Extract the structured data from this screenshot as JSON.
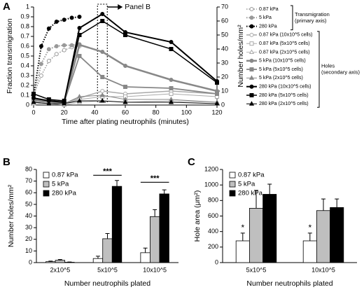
{
  "chart_data": [
    {
      "type": "line",
      "panel_label": "A",
      "xlabel": "Time after plating neutrophils (minutes)",
      "ylabel": "Fraction transmigration",
      "y2label": "Number holes/mm²",
      "xlim": [
        0,
        120
      ],
      "xticks": [
        0,
        20,
        40,
        60,
        80,
        100,
        120
      ],
      "ylim": [
        0,
        1
      ],
      "yticks": [
        0,
        0.1,
        0.2,
        0.3,
        0.4,
        0.5,
        0.6,
        0.7,
        0.8,
        0.9,
        1
      ],
      "y2lim": [
        0,
        70
      ],
      "y2ticks": [
        0,
        10,
        20,
        30,
        40,
        50,
        60,
        70
      ],
      "grid": false,
      "highlight": {
        "x": 45,
        "label": "Panel B"
      },
      "legend_groups": [
        {
          "axis": "y",
          "lines": [
            "Transmigration",
            "(primary axis)"
          ]
        },
        {
          "axis": "y2",
          "lines": [
            "Holes",
            "(secondary axis)"
          ]
        }
      ],
      "series": [
        {
          "name": "0.87 kPa",
          "axis": "y",
          "color": "#999999",
          "marker": "circle",
          "marker_fill": "#ffffff",
          "dash": "dotted",
          "line_width": 1.5,
          "x": [
            0,
            5,
            10,
            15,
            20,
            25,
            30
          ],
          "values": [
            0.1,
            0.3,
            0.45,
            0.52,
            0.56,
            0.59,
            0.6
          ]
        },
        {
          "name": "5 kPa",
          "axis": "y",
          "color": "#999999",
          "marker": "circle",
          "marker_fill": "#999999",
          "dash": "dotted",
          "line_width": 2,
          "x": [
            0,
            5,
            10,
            15,
            20,
            25,
            30
          ],
          "values": [
            0.08,
            0.42,
            0.57,
            0.6,
            0.61,
            0.61,
            0.62
          ]
        },
        {
          "name": "280 kPa",
          "axis": "y",
          "color": "#000000",
          "marker": "circle",
          "marker_fill": "#000000",
          "dash": "dotted",
          "line_width": 2,
          "x": [
            0,
            5,
            10,
            15,
            20,
            25,
            30
          ],
          "values": [
            0.1,
            0.6,
            0.78,
            0.85,
            0.87,
            0.89,
            0.9
          ]
        },
        {
          "name": "0.87 kPa (10x10^5 cells)",
          "axis": "y2",
          "color": "#aaaaaa",
          "marker": "circle",
          "marker_fill": "#ffffff",
          "dash": "solid",
          "line_width": 1.5,
          "x": [
            0,
            10,
            20,
            30,
            45,
            60,
            90,
            120
          ],
          "values": [
            3,
            2,
            1,
            5,
            10,
            8,
            10,
            8
          ]
        },
        {
          "name": "0.87 kPa (5x10^5 cells)",
          "axis": "y2",
          "color": "#aaaaaa",
          "marker": "square",
          "marker_fill": "#ffffff",
          "dash": "solid",
          "line_width": 1,
          "x": [
            0,
            10,
            20,
            30,
            45,
            60,
            90,
            120
          ],
          "values": [
            2,
            1,
            1,
            4,
            6,
            6,
            8,
            6
          ]
        },
        {
          "name": "0.87 kPa (2x10^5 cells)",
          "axis": "y2",
          "color": "#aaaaaa",
          "marker": "triangle",
          "marker_fill": "#ffffff",
          "dash": "solid",
          "line_width": 0.8,
          "x": [
            0,
            10,
            20,
            30,
            45,
            60,
            90,
            120
          ],
          "values": [
            1,
            1,
            0,
            2,
            3,
            2,
            3,
            2
          ]
        },
        {
          "name": "5 kPa (10x10^5 cells)",
          "axis": "y2",
          "color": "#888888",
          "marker": "circle",
          "marker_fill": "#888888",
          "dash": "solid",
          "line_width": 2.5,
          "x": [
            0,
            10,
            20,
            30,
            45,
            60,
            90,
            120
          ],
          "values": [
            4,
            3,
            2,
            43,
            38,
            28,
            18,
            10
          ]
        },
        {
          "name": "5 kPa (5x10^5 cells)",
          "axis": "y2",
          "color": "#888888",
          "marker": "square",
          "marker_fill": "#888888",
          "dash": "solid",
          "line_width": 1.8,
          "x": [
            0,
            10,
            20,
            30,
            45,
            60,
            90,
            120
          ],
          "values": [
            3,
            2,
            2,
            35,
            20,
            13,
            12,
            8
          ]
        },
        {
          "name": "5 kPa (2x10^5 cells)",
          "axis": "y2",
          "color": "#888888",
          "marker": "triangle",
          "marker_fill": "#888888",
          "dash": "solid",
          "line_width": 1,
          "x": [
            0,
            10,
            20,
            30,
            45,
            60,
            90,
            120
          ],
          "values": [
            2,
            1,
            1,
            6,
            7,
            4,
            4,
            2
          ]
        },
        {
          "name": "280 kPa (10x10^5 cells)",
          "axis": "y2",
          "color": "#000000",
          "marker": "circle",
          "marker_fill": "#000000",
          "dash": "solid",
          "line_width": 2,
          "x": [
            0,
            10,
            20,
            30,
            45,
            60,
            90,
            120
          ],
          "values": [
            5,
            3,
            2,
            55,
            65,
            52,
            45,
            17
          ]
        },
        {
          "name": "280 kPa (5x10^5 cells)",
          "axis": "y2",
          "color": "#000000",
          "marker": "square",
          "marker_fill": "#000000",
          "dash": "solid",
          "line_width": 1.5,
          "x": [
            0,
            10,
            20,
            30,
            45,
            60,
            90,
            120
          ],
          "values": [
            8,
            4,
            3,
            50,
            60,
            50,
            40,
            16
          ]
        },
        {
          "name": "280 kPa (2x10^5 cells)",
          "axis": "y2",
          "color": "#000000",
          "marker": "triangle",
          "marker_fill": "#000000",
          "dash": "solid",
          "line_width": 1,
          "x": [
            0,
            10,
            20,
            30,
            45,
            60,
            90,
            120
          ],
          "values": [
            2,
            1,
            1,
            3,
            3,
            2,
            2,
            1
          ]
        }
      ]
    },
    {
      "type": "bar",
      "panel_label": "B",
      "xlabel": "Number neutrophils plated",
      "ylabel": "Number holes/mm²",
      "categories": [
        "2x10^5",
        "5x10^5",
        "10x10^5"
      ],
      "ylim": [
        0,
        80
      ],
      "yticks": [
        0,
        10,
        20,
        30,
        40,
        50,
        60,
        70,
        80
      ],
      "series": [
        {
          "name": "0.87 kPa",
          "color": "#ffffff",
          "values": [
            0.8,
            3.5,
            8.5
          ],
          "errors": [
            0.5,
            2,
            4
          ]
        },
        {
          "name": "5 kPa",
          "color": "#bfbfbf",
          "values": [
            2,
            20.5,
            39.5
          ],
          "errors": [
            0.6,
            4.5,
            6
          ]
        },
        {
          "name": "280 kPa",
          "color": "#000000",
          "values": [
            0.3,
            65.5,
            59
          ],
          "errors": [
            0.2,
            5,
            3.5
          ]
        }
      ],
      "significance": [
        {
          "category": "5x10^5",
          "label": "***",
          "y": 75
        },
        {
          "category": "10x10^5",
          "label": "***",
          "y": 69
        }
      ]
    },
    {
      "type": "bar",
      "panel_label": "C",
      "xlabel": "Number neutrophils plated",
      "ylabel": "Hole area (μm²)",
      "categories": [
        "5x10^5",
        "10x10^5"
      ],
      "ylim": [
        0,
        1200
      ],
      "yticks": [
        0,
        200,
        400,
        600,
        800,
        1000,
        1200
      ],
      "series": [
        {
          "name": "0.87 kPa",
          "color": "#ffffff",
          "values": [
            280,
            280
          ],
          "errors": [
            100,
            100
          ]
        },
        {
          "name": "5 kPa",
          "color": "#bfbfbf",
          "values": [
            700,
            670
          ],
          "errors": [
            230,
            150
          ]
        },
        {
          "name": "280 kPa",
          "color": "#000000",
          "values": [
            880,
            710
          ],
          "errors": [
            130,
            110
          ]
        }
      ],
      "significance": [
        {
          "category": "5x10^5",
          "series": "0.87 kPa",
          "label": "*"
        },
        {
          "category": "10x10^5",
          "series": "0.87 kPa",
          "label": "*"
        }
      ]
    }
  ]
}
